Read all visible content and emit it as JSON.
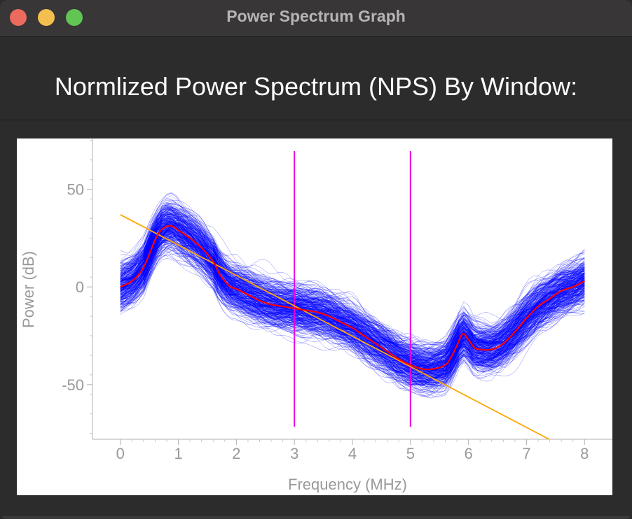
{
  "window": {
    "title": "Power Spectrum Graph"
  },
  "heading": "Normlized Power Spectrum (NPS) By Window:",
  "colors": {
    "traces": "#0000ff",
    "mean": "#ff0000",
    "fit": "#ffa500",
    "markers": "#e600e6"
  },
  "chart_data": {
    "type": "line",
    "title": "",
    "xlabel": "Frequency (MHz)",
    "ylabel": "Power (dB)",
    "xlim": [
      -0.48,
      8.48
    ],
    "ylim": [
      -78,
      76
    ],
    "x_ticks": [
      "0",
      "1",
      "2",
      "3",
      "4",
      "5",
      "6",
      "7",
      "8"
    ],
    "y_ticks": [
      "50",
      "0",
      "-50"
    ],
    "grid": false,
    "legend": "none",
    "series": [
      {
        "role": "mean",
        "x": [
          0,
          0.2,
          0.4,
          0.6,
          0.7,
          0.8,
          0.9,
          1.0,
          1.2,
          1.4,
          1.6,
          1.7,
          1.8,
          1.9,
          2.0,
          2.2,
          2.4,
          2.6,
          2.8,
          3.0,
          3.2,
          3.4,
          3.6,
          3.8,
          4.0,
          4.2,
          4.4,
          4.6,
          4.8,
          5.0,
          5.2,
          5.4,
          5.6,
          5.7,
          5.8,
          5.9,
          6.0,
          6.1,
          6.2,
          6.4,
          6.6,
          6.8,
          7.0,
          7.2,
          7.4,
          7.6,
          7.8,
          8.0
        ],
        "y": [
          0,
          3,
          10,
          24,
          29,
          31,
          31,
          29,
          25,
          20,
          13,
          7,
          3,
          0,
          -1,
          -4,
          -7,
          -9,
          -10,
          -11,
          -12,
          -13,
          -15,
          -18,
          -21,
          -25,
          -29,
          -33,
          -37,
          -40,
          -42,
          -42,
          -40,
          -36,
          -30,
          -24,
          -27,
          -31,
          -32,
          -32,
          -29,
          -23,
          -16,
          -10,
          -6,
          -2,
          0,
          3
        ]
      },
      {
        "role": "linear-fit",
        "x": [
          0,
          7.39
        ],
        "y": [
          37,
          -78
        ]
      }
    ],
    "trace_band": {
      "count": 350,
      "spread_db": 12
    },
    "vertical_markers": [
      3,
      5
    ]
  }
}
